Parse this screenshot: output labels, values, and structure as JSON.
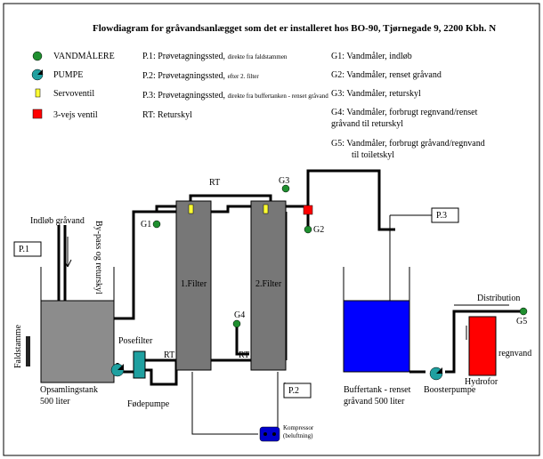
{
  "title": "Flowdiagram for gråvandsanlægget som det er installeret hos BO-90, Tjørnegade 9, 2200 Kbh. N",
  "legend": {
    "vandmaaler": "VANDMÅLERE",
    "pumpe": "PUMPE",
    "servoventil": "Servoventil",
    "trevejs": "3-vejs ventil"
  },
  "sample_points": {
    "p1": "P.1: Prøvetagningssted,",
    "p1_note": "direkte fra faldstammen",
    "p2": "P.2: Prøvetagningssted,",
    "p2_note": "efter 2. filter",
    "p3": "P.3: Prøvetagningssted,",
    "p3_note": "direkte fra buffertanken - renset gråvand",
    "rt": "RT: Returskyl"
  },
  "meters": {
    "g1": "G1: Vandmåler, indløb",
    "g2": "G2: Vandmåler, renset gråvand",
    "g3": "G3: Vandmåler, returskyl",
    "g4_line1": "G4: Vandmåler, forbrugt regnvand/renset",
    "g4_line2": "gråvand til returskyl",
    "g5_line1": "G5: Vandmåler, forbrugt gråvand/regnvand",
    "g5_line2": "til toiletskyl"
  },
  "diagram": {
    "rt_top": "RT",
    "g3": "G3",
    "g1": "G1",
    "g2": "G2",
    "g4": "G4",
    "g5": "G5",
    "p1": "P.1",
    "p2": "P.2",
    "p3": "P.3",
    "indloeb": "Indløb gråvand",
    "bypass": "By-pass og returskyl",
    "filter1": "1.Filter",
    "filter2": "2.Filter",
    "posefilter": "Posefilter",
    "rt_left": "RT",
    "rt_mid": "RT",
    "faldstamme": "Faldstamme",
    "opsamling_line1": "Opsamlingstank",
    "opsamling_line2": "500 liter",
    "foedepumpe": "Fødepumpe",
    "buffer_line1": "Buffertank - renset",
    "buffer_line2": "gråvand 500 liter",
    "boosterpumpe": "Boosterpumpe",
    "hydrofor": "Hydrofor",
    "distribution": "Distribution",
    "regnvand": "regnvand",
    "kompressor_line1": "Kompressor",
    "kompressor_line2": "(beluftning)"
  },
  "colors": {
    "meter": "#1f8f2f",
    "pump": "#1fa0a0",
    "servo": "#ffff33",
    "valve": "#ff0000",
    "tank_gray": "#8c8c8c",
    "buffer_blue": "#0000ff",
    "hydrofor_red": "#ff0000",
    "filter_gray": "#777777",
    "compressor": "#0000cc"
  }
}
